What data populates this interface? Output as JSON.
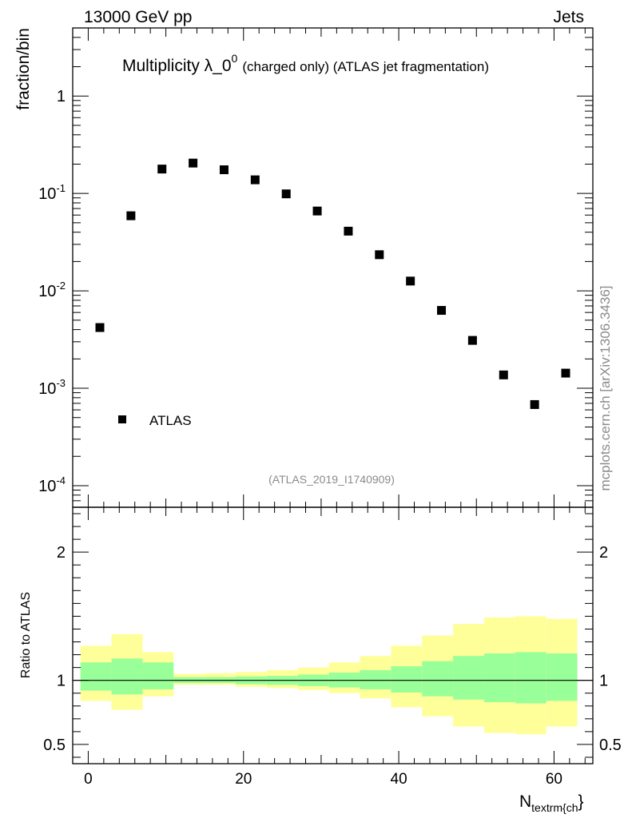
{
  "header": {
    "energy_label": "13000 GeV pp",
    "process_label": "Jets"
  },
  "side_label": "mcplots.cern.ch [arXiv:1306.3436]",
  "chart_data": {
    "type": "scatter",
    "title_main": "Multiplicity λ_0",
    "title_sup": "0",
    "title_suffix": "(charged only) (ATLAS jet fragmentation)",
    "analysis_label": "(ATLAS_2019_I1740909)",
    "ylabel": "fraction/bin",
    "xlabel_main": "N",
    "xlabel_sub": "textrm{ch",
    "xlabel_tail": "}",
    "yscale": "log",
    "xlim": [
      -2,
      65
    ],
    "ylim": [
      6e-05,
      5
    ],
    "x_ticks": [
      0,
      20,
      40,
      60
    ],
    "y_ticks": [
      {
        "base": "10",
        "exp": "-4",
        "value": 0.0001
      },
      {
        "base": "10",
        "exp": "-3",
        "value": 0.001
      },
      {
        "base": "10",
        "exp": "-2",
        "value": 0.01
      },
      {
        "base": "10",
        "exp": "-1",
        "value": 0.1
      },
      {
        "base": "1",
        "exp": "",
        "value": 1
      }
    ],
    "legend": {
      "position": "bottom-left",
      "entries": [
        "ATLAS"
      ]
    },
    "series": [
      {
        "name": "ATLAS",
        "x": [
          1.5,
          5.5,
          9.5,
          13.5,
          17.5,
          21.5,
          25.5,
          29.5,
          33.5,
          37.5,
          41.5,
          45.5,
          49.5,
          53.5,
          57.5,
          61.5
        ],
        "y": [
          0.0042,
          0.059,
          0.178,
          0.205,
          0.175,
          0.138,
          0.099,
          0.066,
          0.041,
          0.0235,
          0.0126,
          0.0063,
          0.0031,
          0.00137,
          0.00068,
          0.00143
        ]
      }
    ],
    "ratio": {
      "ylabel": "Ratio to ATLAS",
      "ylim": [
        0.35,
        2.35
      ],
      "y_ticks": [
        0.5,
        1,
        2
      ],
      "y_tick_labels": [
        "0.5",
        "1",
        "2"
      ],
      "reference_line": 1,
      "bin_edges": [
        -1,
        3,
        7,
        11,
        15,
        19,
        23,
        27,
        31,
        35,
        39,
        43,
        47,
        51,
        55,
        59,
        63
      ],
      "band_inner_low": [
        0.92,
        0.89,
        0.93,
        0.98,
        0.98,
        0.97,
        0.965,
        0.955,
        0.945,
        0.93,
        0.905,
        0.875,
        0.85,
        0.83,
        0.82,
        0.84
      ],
      "band_inner_high": [
        1.14,
        1.17,
        1.14,
        1.025,
        1.025,
        1.03,
        1.035,
        1.045,
        1.06,
        1.08,
        1.11,
        1.15,
        1.19,
        1.21,
        1.22,
        1.21
      ],
      "band_outer_low": [
        0.84,
        0.77,
        0.875,
        0.965,
        0.965,
        0.95,
        0.94,
        0.925,
        0.9,
        0.86,
        0.79,
        0.72,
        0.64,
        0.59,
        0.58,
        0.64
      ],
      "band_outer_high": [
        1.27,
        1.36,
        1.22,
        1.05,
        1.055,
        1.065,
        1.08,
        1.1,
        1.14,
        1.19,
        1.27,
        1.35,
        1.44,
        1.49,
        1.5,
        1.48
      ],
      "colors": {
        "inner": "#99ff99",
        "outer": "#ffff99",
        "line": "#000000"
      }
    }
  }
}
